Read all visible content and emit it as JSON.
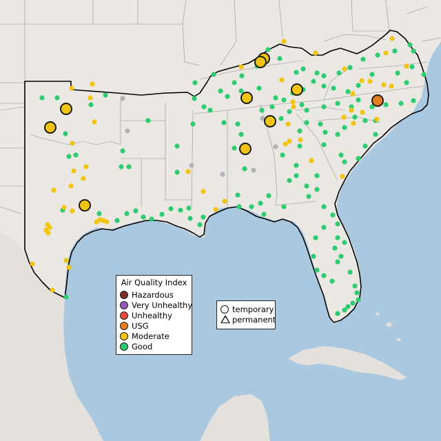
{
  "map": {
    "colors": {
      "water": "#aac8e0",
      "land": "#ebe7e2",
      "land_outside": "#e4e0db",
      "state_border": "#aaaaaa",
      "region_border": "#000000"
    }
  },
  "aqi_legend": {
    "title": "Air Quality Index",
    "categories": [
      {
        "label": "Hazardous",
        "color": "#7e2f2a"
      },
      {
        "label": "Very Unhealthy",
        "color": "#9b59b6"
      },
      {
        "label": "Unhealthy",
        "color": "#e74c3c"
      },
      {
        "label": "USG",
        "color": "#e67e22"
      },
      {
        "label": "Moderate",
        "color": "#f1c40f"
      },
      {
        "label": "Good",
        "color": "#2ecc71"
      }
    ]
  },
  "monitor_type_legend": {
    "items": [
      {
        "label": "temporary",
        "shape": "circle"
      },
      {
        "label": "permanent",
        "shape": "triangle"
      }
    ]
  },
  "status_colors": {
    "good": "#2ecc71",
    "moderate": "#f1c40f",
    "usg": "#e67e22",
    "no_data": "#b0b4b8"
  }
}
